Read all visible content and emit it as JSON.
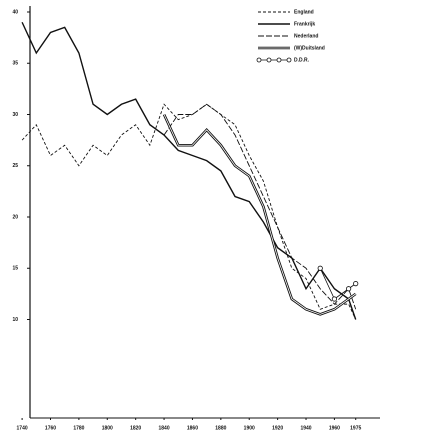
{
  "chart_data": {
    "type": "line",
    "x": [
      1740,
      1750,
      1760,
      1770,
      1780,
      1790,
      1800,
      1810,
      1820,
      1830,
      1840,
      1850,
      1860,
      1870,
      1880,
      1890,
      1900,
      1910,
      1920,
      1930,
      1940,
      1950,
      1960,
      1970,
      1975
    ],
    "xlim": [
      1735,
      1990
    ],
    "xticks": [
      1740,
      1760,
      1780,
      1800,
      1820,
      1840,
      1860,
      1880,
      1900,
      1920,
      1940,
      1960,
      1975
    ],
    "ylim": [
      0,
      40
    ],
    "yticks": [
      10,
      15,
      20,
      25,
      30,
      35,
      40
    ],
    "legend": "top-right",
    "series": [
      {
        "name": "England",
        "color": "#111111",
        "style": "dashed",
        "values": [
          27.5,
          29,
          26,
          27,
          25,
          27,
          26,
          28,
          29,
          27,
          31,
          29.5,
          30,
          31,
          30,
          29,
          26,
          23.5,
          19,
          15,
          14,
          11,
          11.5,
          11.5,
          10
        ]
      },
      {
        "name": "Frankrijk",
        "color": "#111111",
        "style": "solid",
        "values": [
          39,
          36,
          38,
          38.5,
          36,
          31,
          30,
          31,
          31.5,
          29,
          28,
          26.5,
          26,
          25.5,
          24.5,
          22,
          21.5,
          19.5,
          17,
          16,
          13,
          15,
          13,
          12,
          10
        ]
      },
      {
        "name": "Nederland",
        "color": "#111111",
        "style": "longdash",
        "values": [
          null,
          null,
          null,
          null,
          null,
          null,
          null,
          null,
          null,
          null,
          28,
          30,
          30,
          31,
          30,
          28,
          25,
          22,
          19,
          16,
          15,
          13,
          11.5,
          13,
          11
        ]
      },
      {
        "name": "(W)Duitsland",
        "color": "#111111",
        "style": "double",
        "values": [
          null,
          null,
          null,
          null,
          null,
          null,
          null,
          null,
          null,
          null,
          30,
          27,
          27,
          28.5,
          27,
          25,
          24,
          21,
          16,
          12,
          11,
          10.5,
          11,
          12,
          12.5
        ]
      },
      {
        "name": "D.D.R.",
        "color": "#111111",
        "style": "circles",
        "values": [
          null,
          null,
          null,
          null,
          null,
          null,
          null,
          null,
          null,
          null,
          null,
          null,
          null,
          null,
          null,
          null,
          null,
          null,
          null,
          null,
          null,
          15,
          12,
          13,
          13.5
        ]
      }
    ]
  }
}
